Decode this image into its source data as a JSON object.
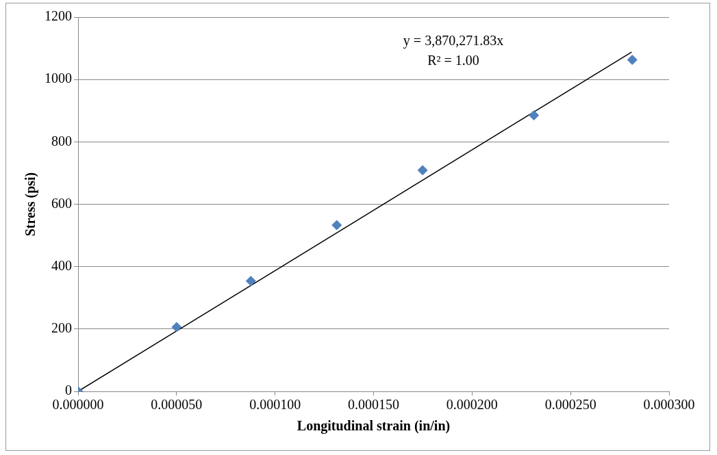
{
  "chart_data": {
    "type": "scatter",
    "xlabel": "Longitudinal strain (in/in)",
    "ylabel": "Stress (psi)",
    "xlim": [
      0,
      0.0003
    ],
    "xticks": [
      {
        "value": 0,
        "label": "0.000000"
      },
      {
        "value": 5e-05,
        "label": "0.000050"
      },
      {
        "value": 0.0001,
        "label": "0.000100"
      },
      {
        "value": 0.00015,
        "label": "0.000150"
      },
      {
        "value": 0.0002,
        "label": "0.000200"
      },
      {
        "value": 0.00025,
        "label": "0.000250"
      },
      {
        "value": 0.0003,
        "label": "0.000300"
      }
    ],
    "ylim": [
      0,
      1200
    ],
    "yticks": [
      0,
      200,
      400,
      600,
      800,
      1000,
      1200
    ],
    "grid": "y",
    "legend": false,
    "series": [
      {
        "type": "scatter",
        "color": "#4f81bd",
        "marker": "diamond",
        "x": [
          0,
          5e-05,
          8.77e-05,
          0.0001313,
          0.0001749,
          0.0002314,
          0.0002813
        ],
        "values": [
          0,
          206,
          354,
          533,
          709,
          885,
          1063
        ]
      },
      {
        "type": "line",
        "color": "#000000",
        "marker": "none",
        "line_style": "solid",
        "x": [
          0,
          0.000281
        ],
        "values": [
          0,
          1088
        ]
      }
    ],
    "annotations": [
      "y = 3,870,271.83x",
      "R² = 1.00"
    ]
  }
}
